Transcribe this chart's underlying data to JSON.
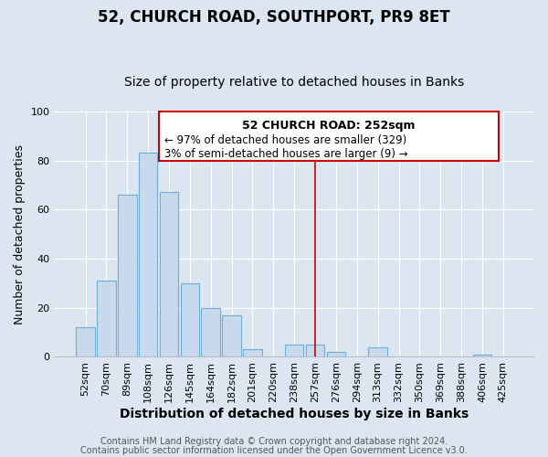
{
  "title": "52, CHURCH ROAD, SOUTHPORT, PR9 8ET",
  "subtitle": "Size of property relative to detached houses in Banks",
  "xlabel": "Distribution of detached houses by size in Banks",
  "ylabel": "Number of detached properties",
  "categories": [
    "52sqm",
    "70sqm",
    "89sqm",
    "108sqm",
    "126sqm",
    "145sqm",
    "164sqm",
    "182sqm",
    "201sqm",
    "220sqm",
    "238sqm",
    "257sqm",
    "276sqm",
    "294sqm",
    "313sqm",
    "332sqm",
    "350sqm",
    "369sqm",
    "388sqm",
    "406sqm",
    "425sqm"
  ],
  "values": [
    12,
    31,
    66,
    83,
    67,
    30,
    20,
    17,
    3,
    0,
    5,
    5,
    2,
    0,
    4,
    0,
    0,
    0,
    0,
    1,
    0
  ],
  "bar_color": "#c8d9ee",
  "bar_edge_color": "#6baed6",
  "vline_color": "#cc0000",
  "vline_index": 11,
  "annotation_title": "52 CHURCH ROAD: 252sqm",
  "annotation_line1": "← 97% of detached houses are smaller (329)",
  "annotation_line2": "3% of semi-detached houses are larger (9) →",
  "annotation_box_edge": "#cc0000",
  "ylim": [
    0,
    100
  ],
  "footer1": "Contains HM Land Registry data © Crown copyright and database right 2024.",
  "footer2": "Contains public sector information licensed under the Open Government Licence v3.0.",
  "bg_color": "#dce6f0",
  "plot_bg_color": "#dce6f0",
  "grid_color": "#ffffff",
  "title_fontsize": 12,
  "subtitle_fontsize": 10,
  "xlabel_fontsize": 10,
  "ylabel_fontsize": 9,
  "tick_fontsize": 8,
  "footer_fontsize": 7
}
